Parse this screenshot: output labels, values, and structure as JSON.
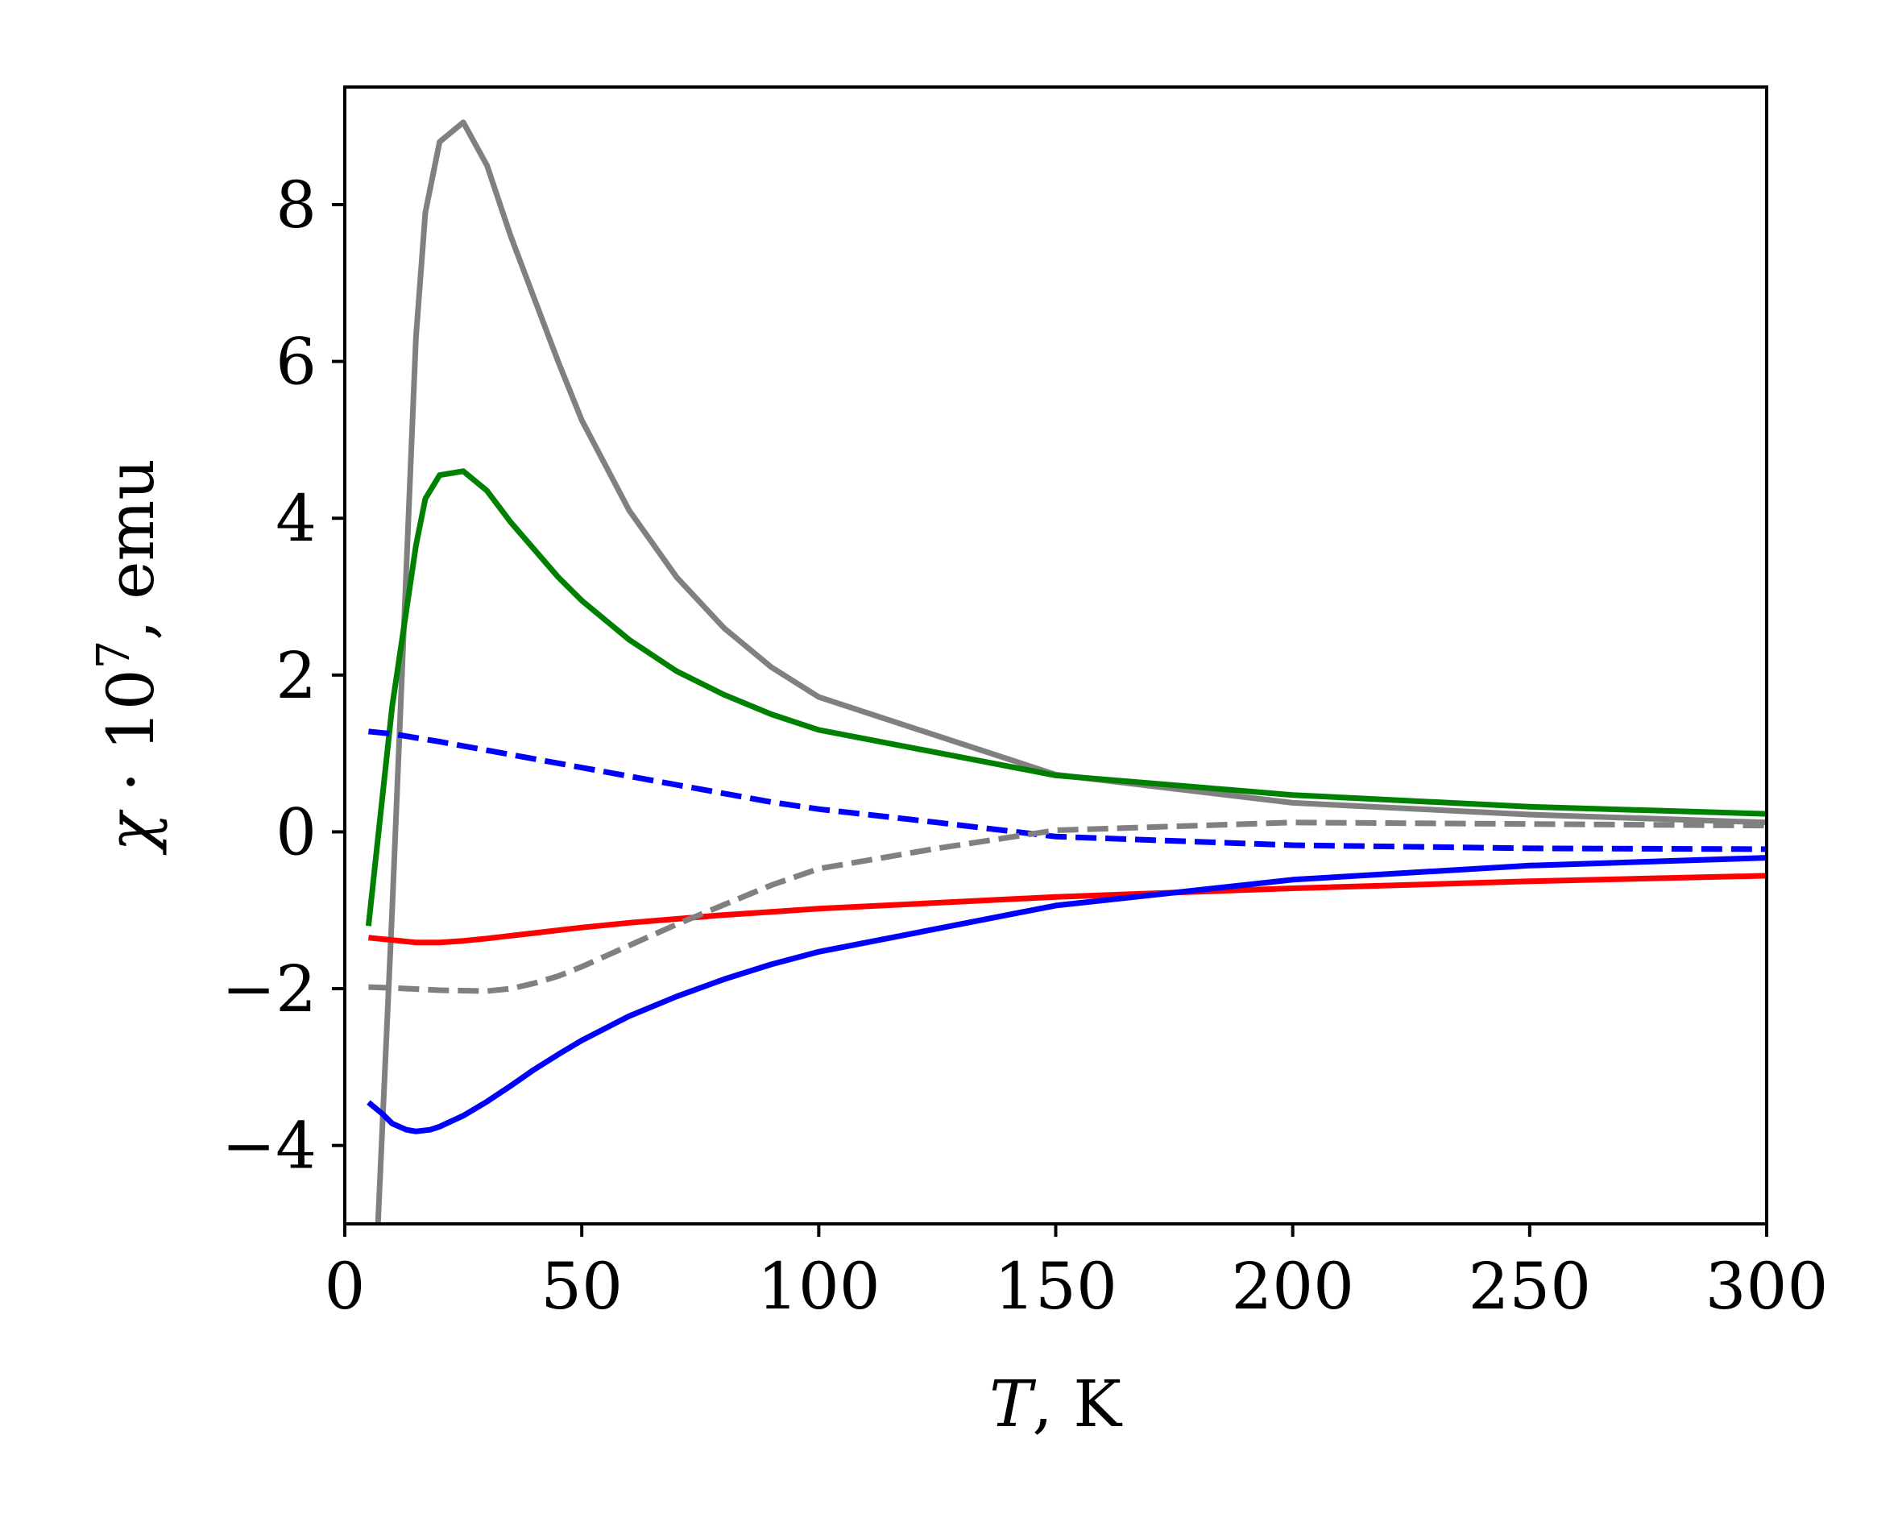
{
  "chart_data": {
    "type": "line",
    "title": "",
    "xlabel": "T, K",
    "ylabel": "χ · 10^7, emu",
    "xlabel_parts": {
      "var": "T",
      "unit": ", K"
    },
    "ylabel_parts": {
      "var": "χ",
      "mid": " · 10",
      "exp": "7",
      "unit": ", emu"
    },
    "xlim": [
      0,
      300
    ],
    "ylim": [
      -5,
      9.5
    ],
    "x_ticks": [
      0,
      50,
      100,
      150,
      200,
      250,
      300
    ],
    "x_tick_labels": [
      "0",
      "50",
      "100",
      "150",
      "200",
      "250",
      "300"
    ],
    "y_ticks": [
      -4,
      -2,
      0,
      2,
      4,
      6,
      8
    ],
    "y_tick_labels": [
      "−4",
      "−2",
      "0",
      "2",
      "4",
      "6",
      "8"
    ],
    "grid": false,
    "legend": "none",
    "series": [
      {
        "color": "#808080",
        "style": "solid",
        "x": [
          5,
          7,
          10,
          15,
          17,
          20,
          25,
          30,
          35,
          40,
          45,
          50,
          60,
          70,
          80,
          90,
          100,
          150,
          200,
          250,
          300
        ],
        "y": [
          -6,
          -5,
          -1,
          6.3,
          7.9,
          8.8,
          9.05,
          8.5,
          7.6,
          6.8,
          6.0,
          5.25,
          4.1,
          3.25,
          2.6,
          2.1,
          1.72,
          0.73,
          0.37,
          0.22,
          0.12
        ]
      },
      {
        "color": "#008000",
        "style": "solid",
        "x": [
          5,
          10,
          15,
          17,
          20,
          25,
          30,
          35,
          40,
          45,
          50,
          60,
          70,
          80,
          90,
          100,
          150,
          200,
          250,
          300
        ],
        "y": [
          -1.2,
          1.6,
          3.65,
          4.25,
          4.55,
          4.6,
          4.35,
          3.95,
          3.6,
          3.25,
          2.95,
          2.45,
          2.05,
          1.75,
          1.5,
          1.3,
          0.72,
          0.47,
          0.32,
          0.23
        ]
      },
      {
        "color": "#ff0000",
        "style": "solid",
        "x": [
          5,
          10,
          15,
          20,
          25,
          30,
          40,
          50,
          60,
          70,
          80,
          90,
          100,
          150,
          200,
          250,
          300
        ],
        "y": [
          -1.35,
          -1.38,
          -1.41,
          -1.41,
          -1.39,
          -1.36,
          -1.29,
          -1.22,
          -1.16,
          -1.11,
          -1.06,
          -1.02,
          -0.98,
          -0.83,
          -0.72,
          -0.63,
          -0.56
        ]
      },
      {
        "color": "#0000ff",
        "style": "solid",
        "x": [
          5,
          8,
          10,
          13,
          15,
          18,
          20,
          25,
          30,
          35,
          40,
          45,
          50,
          60,
          70,
          80,
          90,
          100,
          150,
          200,
          250,
          300
        ],
        "y": [
          -3.45,
          -3.6,
          -3.72,
          -3.8,
          -3.82,
          -3.8,
          -3.76,
          -3.62,
          -3.44,
          -3.24,
          -3.03,
          -2.84,
          -2.66,
          -2.35,
          -2.1,
          -1.88,
          -1.69,
          -1.53,
          -0.94,
          -0.61,
          -0.43,
          -0.33
        ]
      },
      {
        "color": "#0000ff",
        "style": "dashed",
        "x": [
          5,
          10,
          20,
          30,
          40,
          50,
          60,
          70,
          80,
          90,
          100,
          125,
          150,
          200,
          250,
          300
        ],
        "y": [
          1.28,
          1.25,
          1.15,
          1.04,
          0.93,
          0.82,
          0.71,
          0.6,
          0.49,
          0.38,
          0.29,
          0.12,
          -0.06,
          -0.17,
          -0.21,
          -0.22
        ]
      },
      {
        "color": "#808080",
        "style": "dashed",
        "x": [
          5,
          10,
          20,
          30,
          35,
          40,
          45,
          50,
          60,
          70,
          80,
          90,
          100,
          125,
          150,
          200,
          250,
          300
        ],
        "y": [
          -1.98,
          -1.99,
          -2.02,
          -2.03,
          -2.0,
          -1.93,
          -1.84,
          -1.72,
          -1.45,
          -1.18,
          -0.93,
          -0.68,
          -0.47,
          -0.21,
          0.02,
          0.12,
          0.1,
          0.08
        ]
      }
    ]
  }
}
